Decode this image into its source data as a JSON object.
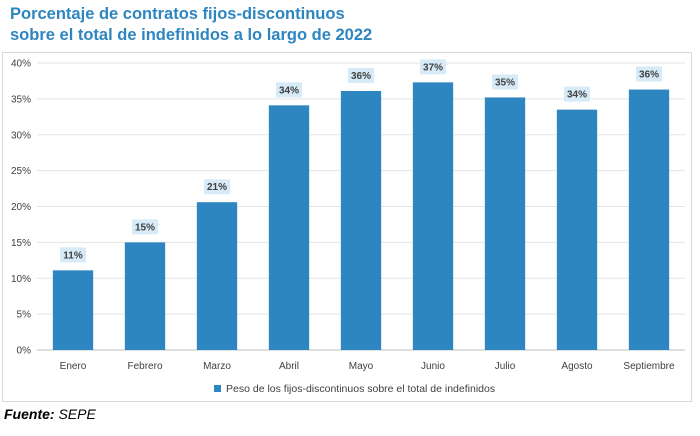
{
  "title_line1": "Porcentaje de contratos fijos-discontinuos",
  "title_line2": "sobre el total de indefinidos a lo largo de 2022",
  "source_label": "Fuente:",
  "source_value": "SEPE",
  "colors": {
    "title": "#2e86c1",
    "bar": "#2e86c1",
    "label_bg": "#d6eaf8",
    "grid": "#e3e3e3",
    "axis_text": "#404040"
  },
  "chart_data": {
    "type": "bar",
    "categories": [
      "Enero",
      "Febrero",
      "Marzo",
      "Abril",
      "Mayo",
      "Junio",
      "Julio",
      "Agosto",
      "Septiembre"
    ],
    "values": [
      11,
      15,
      21,
      34,
      36,
      37,
      35,
      34,
      36
    ],
    "plotted_values": [
      11.1,
      15.0,
      20.6,
      34.1,
      36.1,
      37.3,
      35.2,
      33.5,
      36.3
    ],
    "data_labels": [
      "11%",
      "15%",
      "21%",
      "34%",
      "36%",
      "37%",
      "35%",
      "34%",
      "36%"
    ],
    "series": [
      {
        "name": "Peso de los fijos-discontinuos sobre el total de indefinidos"
      }
    ],
    "y_ticks": [
      "0%",
      "5%",
      "10%",
      "15%",
      "20%",
      "25%",
      "30%",
      "35%",
      "40%"
    ],
    "ylim": [
      0,
      40
    ],
    "grid": true,
    "legend": "bottom"
  }
}
